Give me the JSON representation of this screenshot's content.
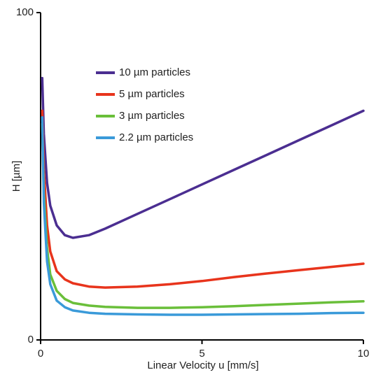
{
  "chart_data": {
    "type": "line",
    "xlabel": "Linear Velocity u [mm/s]",
    "ylabel": "H [µm]",
    "x": [
      0.05,
      0.1,
      0.2,
      0.3,
      0.5,
      0.75,
      1,
      1.5,
      2,
      3,
      4,
      5,
      6,
      7,
      8,
      9,
      10
    ],
    "series": [
      {
        "name": "10 µm particles",
        "color": "#4b2e91",
        "values": [
          80,
          63,
          48,
          41,
          35,
          32,
          31.2,
          32,
          34,
          38.5,
          43,
          47.5,
          52,
          56.5,
          61,
          65.5,
          70
        ]
      },
      {
        "name": "5 µm particles",
        "color": "#e8341c",
        "values": [
          70,
          52,
          35,
          27,
          21,
          18.5,
          17.3,
          16.3,
          16,
          16.3,
          17,
          18,
          19.2,
          20.3,
          21.3,
          22.3,
          23.3
        ]
      },
      {
        "name": "3 µm particles",
        "color": "#6abf3a",
        "values": [
          66,
          45,
          28,
          20,
          15,
          12.5,
          11.3,
          10.5,
          10.1,
          9.8,
          9.8,
          10,
          10.3,
          10.7,
          11.1,
          11.5,
          11.8
        ]
      },
      {
        "name": "2.2 µm particles",
        "color": "#3a9ad9",
        "values": [
          68,
          42,
          24,
          17,
          12,
          10,
          9,
          8.3,
          8,
          7.8,
          7.7,
          7.7,
          7.8,
          7.9,
          8,
          8.2,
          8.3
        ]
      }
    ],
    "xlim": [
      0,
      10
    ],
    "xticks": [
      0,
      5,
      10
    ],
    "ylim": [
      0,
      100
    ],
    "yticks": [
      0,
      100
    ],
    "legend": "upper-left"
  }
}
